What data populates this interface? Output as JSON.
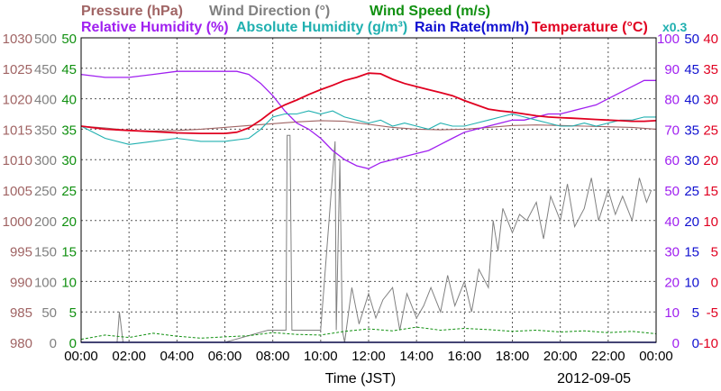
{
  "chart_data": {
    "type": "line",
    "title_row1": [
      {
        "text": "Pressure (hPa)",
        "color": "#a06464"
      },
      {
        "text": "Wind Direction (°)",
        "color": "#808080"
      },
      {
        "text": "Wind Speed (m/s)",
        "color": "#109010"
      }
    ],
    "title_row2": [
      {
        "text": "Relative Humidity (%)",
        "color": "#a020f0"
      },
      {
        "text": "Absolute Humidity (g/m³)",
        "color": "#20b0b0"
      },
      {
        "text": "Rain Rate(mm/h)",
        "color": "#1010d0"
      },
      {
        "text": "Temperature (°C)",
        "color": "#e00020"
      }
    ],
    "scale_note": {
      "text": "x0.3",
      "color": "#20b0b0"
    },
    "xlabel": "Time (JST)",
    "date_label": "2012-09-05",
    "x_ticks": [
      "00:00",
      "02:00",
      "04:00",
      "06:00",
      "08:00",
      "10:00",
      "12:00",
      "14:00",
      "16:00",
      "18:00",
      "20:00",
      "22:00",
      "00:00"
    ],
    "grid": true,
    "axes": {
      "pressure": {
        "color": "#a06464",
        "ticks": [
          "980",
          "985",
          "990",
          "995",
          "1000",
          "1005",
          "1010",
          "1015",
          "1020",
          "1025",
          "1030"
        ],
        "range": [
          980,
          1030
        ]
      },
      "wind_direction": {
        "color": "#808080",
        "ticks": [
          "0",
          "50",
          "100",
          "150",
          "200",
          "250",
          "300",
          "350",
          "400",
          "450",
          "500"
        ],
        "range": [
          0,
          500
        ]
      },
      "wind_speed": {
        "color": "#109010",
        "ticks": [
          "0",
          "5",
          "10",
          "15",
          "20",
          "25",
          "30",
          "35",
          "40",
          "45",
          "50"
        ],
        "range": [
          0,
          50
        ]
      },
      "humidity": {
        "color": "#a020f0",
        "ticks": [
          "0",
          "10",
          "20",
          "30",
          "40",
          "50",
          "60",
          "70",
          "80",
          "90",
          "100"
        ],
        "range": [
          0,
          100
        ]
      },
      "rain_rate": {
        "color": "#1010d0",
        "ticks": [
          "0",
          "5",
          "10",
          "15",
          "20",
          "25",
          "30",
          "35",
          "40",
          "45",
          "50"
        ],
        "range": [
          0,
          50
        ]
      },
      "temperature": {
        "color": "#e00020",
        "ticks": [
          "-10",
          "-5",
          "0",
          "5",
          "10",
          "15",
          "20",
          "25",
          "30",
          "35",
          "40"
        ],
        "range": [
          -10,
          40
        ]
      }
    },
    "series": [
      {
        "name": "Pressure (hPa)",
        "axis": "pressure",
        "color": "#a06464",
        "x": [
          0,
          1,
          2,
          3,
          4,
          5,
          6,
          7,
          8,
          9,
          10,
          11,
          12,
          13,
          14,
          15,
          16,
          17,
          18,
          19,
          20,
          21,
          22,
          23,
          24
        ],
        "y": [
          1015.5,
          1015.2,
          1014.8,
          1014.7,
          1014.8,
          1015.0,
          1015.3,
          1015.6,
          1015.9,
          1016.2,
          1016.4,
          1016.3,
          1015.8,
          1015.3,
          1015.0,
          1014.9,
          1015.0,
          1015.3,
          1015.6,
          1015.7,
          1015.6,
          1015.5,
          1015.4,
          1015.3,
          1015.0
        ]
      },
      {
        "name": "Wind Direction (°)",
        "axis": "wind_direction",
        "color": "#808080",
        "x": [
          0,
          1.5,
          1.6,
          1.75,
          2,
          4,
          6,
          7.8,
          8.55,
          8.6,
          8.72,
          8.8,
          9,
          9.5,
          10,
          10.6,
          10.65,
          10.8,
          10.9,
          11,
          11.3,
          11.6,
          12,
          12.3,
          12.6,
          13,
          13.3,
          13.6,
          14,
          14.3,
          14.6,
          15,
          15.3,
          15.6,
          16,
          16.3,
          16.6,
          17,
          17.2,
          17.4,
          17.6,
          18,
          18.3,
          18.6,
          19,
          19.3,
          19.6,
          20,
          20.3,
          20.6,
          21,
          21.3,
          21.6,
          22,
          22.3,
          22.6,
          23,
          23.3,
          23.6,
          23.8
        ],
        "y": [
          0,
          0,
          50,
          0,
          0,
          0,
          0,
          20,
          20,
          340,
          340,
          20,
          20,
          20,
          20,
          330,
          20,
          300,
          20,
          0,
          90,
          30,
          80,
          40,
          70,
          90,
          20,
          80,
          40,
          60,
          90,
          50,
          110,
          60,
          100,
          50,
          120,
          90,
          200,
          150,
          220,
          180,
          210,
          200,
          230,
          170,
          240,
          200,
          260,
          190,
          220,
          270,
          200,
          250,
          210,
          240,
          200,
          270,
          230,
          250
        ]
      },
      {
        "name": "Wind Speed (m/s)",
        "axis": "wind_speed",
        "color": "#109010",
        "x": [
          0,
          1,
          2,
          3,
          4,
          5,
          6,
          7,
          8,
          9,
          10,
          11,
          12,
          13,
          14,
          15,
          16,
          17,
          18,
          19,
          20,
          21,
          22,
          23,
          24
        ],
        "y": [
          0.5,
          1.2,
          0.8,
          1.5,
          1.0,
          0.7,
          0.9,
          1.1,
          1.6,
          1.3,
          1.2,
          1.8,
          2.2,
          1.9,
          2.5,
          2.0,
          2.3,
          2.1,
          1.8,
          2.0,
          1.7,
          1.9,
          1.6,
          1.8,
          1.4
        ]
      },
      {
        "name": "Relative Humidity (%)",
        "axis": "humidity",
        "color": "#a020f0",
        "x": [
          0,
          1,
          2,
          3,
          4,
          5,
          6,
          6.5,
          7,
          7.5,
          8,
          8.5,
          9,
          9.5,
          10,
          10.5,
          11,
          11.5,
          12,
          12.5,
          13,
          13.5,
          14,
          14.5,
          15,
          15.5,
          16,
          16.5,
          17,
          17.5,
          18,
          18.5,
          19,
          19.5,
          20,
          20.5,
          21,
          21.5,
          22,
          22.5,
          23,
          23.5,
          24
        ],
        "y": [
          88,
          87,
          87,
          88,
          89,
          89,
          89,
          89,
          88,
          85,
          81,
          76,
          72,
          70,
          67,
          63,
          60,
          58,
          57,
          59,
          60,
          61,
          62,
          63,
          65,
          67,
          69,
          70,
          71,
          72,
          73,
          73,
          74,
          75,
          75,
          76,
          77,
          78,
          80,
          82,
          84,
          86,
          86
        ]
      },
      {
        "name": "Absolute Humidity (g/m³)",
        "axis": "humidity",
        "color": "#20b0b0",
        "x": [
          0,
          1,
          2,
          3,
          4,
          5,
          6,
          7,
          7.5,
          8,
          8.5,
          9,
          9.5,
          10,
          10.5,
          11,
          11.5,
          12,
          12.5,
          13,
          13.5,
          14,
          14.5,
          15,
          15.5,
          16,
          16.5,
          17,
          17.5,
          18,
          18.5,
          19,
          19.5,
          20,
          20.5,
          21,
          21.5,
          22,
          22.5,
          23,
          23.5,
          24
        ],
        "y": [
          71,
          67,
          65,
          66,
          67,
          66,
          66,
          67,
          70,
          74,
          75,
          75,
          76,
          75,
          76,
          74,
          73,
          72,
          73,
          71,
          72,
          71,
          70,
          72,
          71,
          71,
          72,
          73,
          74,
          75,
          74,
          73,
          72,
          71,
          71,
          72,
          71,
          72,
          73,
          73,
          74,
          74
        ]
      },
      {
        "name": "Rain Rate(mm/h)",
        "axis": "rain_rate",
        "color": "#1010d0",
        "x": [
          0,
          24
        ],
        "y": [
          0,
          0
        ]
      },
      {
        "name": "Temperature (°C)",
        "axis": "temperature",
        "color": "#e00020",
        "x": [
          0,
          1,
          2,
          3,
          4,
          5,
          6,
          6.5,
          7,
          7.5,
          8,
          8.5,
          9,
          9.5,
          10,
          10.5,
          11,
          11.5,
          12,
          12.5,
          13,
          13.5,
          14,
          14.5,
          15,
          15.5,
          16,
          16.5,
          17,
          17.5,
          18,
          18.5,
          19,
          19.5,
          20,
          20.5,
          21,
          21.5,
          22,
          22.5,
          23,
          23.5,
          24
        ],
        "y": [
          25.5,
          25.0,
          24.8,
          24.6,
          24.4,
          24.3,
          24.3,
          24.5,
          25.2,
          26.5,
          28.0,
          29.0,
          29.8,
          30.7,
          31.5,
          32.2,
          33.0,
          33.5,
          34.2,
          34.1,
          33.2,
          32.5,
          32.0,
          31.5,
          31.0,
          30.5,
          29.7,
          29.0,
          28.3,
          28.0,
          27.8,
          27.5,
          27.2,
          27.0,
          26.9,
          26.8,
          26.7,
          26.6,
          26.5,
          26.4,
          26.3,
          26.3,
          26.4
        ]
      }
    ]
  }
}
